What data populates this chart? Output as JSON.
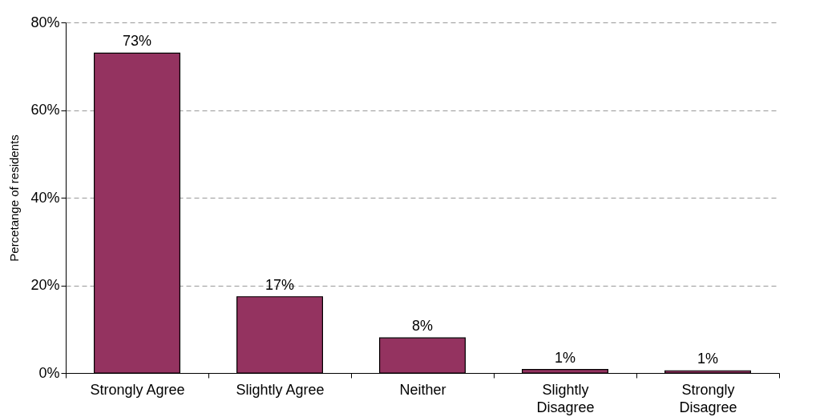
{
  "chart_data": {
    "type": "bar",
    "ylabel": "Percetange of residents",
    "categories": [
      "Strongly Agree",
      "Slightly Agree",
      "Neither",
      "Slightly Disagree",
      "Strongly Disagree"
    ],
    "values": [
      73,
      17.4,
      8,
      0.8,
      0.5
    ],
    "value_labels": [
      "73%",
      "17%",
      "8%",
      "1%",
      "1%"
    ],
    "color": "#943360",
    "ylim": [
      0,
      80
    ],
    "yticks": [
      {
        "value": 0,
        "label": "0%"
      },
      {
        "value": 20,
        "label": "20%"
      },
      {
        "value": 40,
        "label": "40%"
      },
      {
        "value": 60,
        "label": "60%"
      },
      {
        "value": 80,
        "label": "80%"
      }
    ],
    "grid": "y"
  }
}
